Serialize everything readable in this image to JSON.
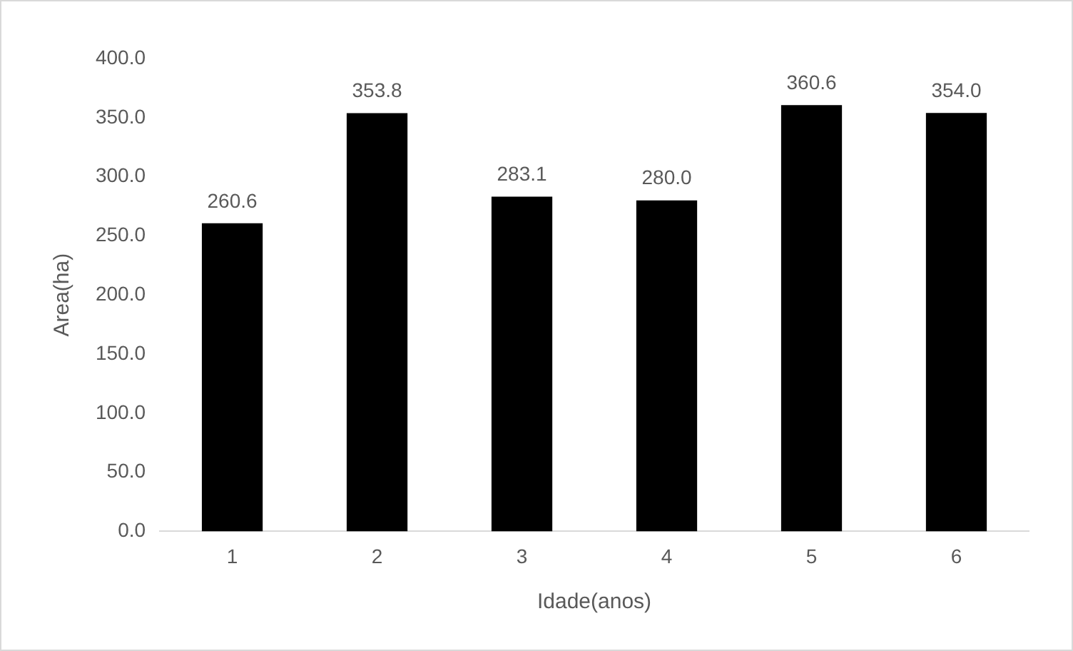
{
  "chart_data": {
    "type": "bar",
    "xlabel": "Idade(anos)",
    "ylabel": "Area(ha)",
    "categories": [
      "1",
      "2",
      "3",
      "4",
      "5",
      "6"
    ],
    "values": [
      260.6,
      353.8,
      283.1,
      280.0,
      360.6,
      354.0
    ],
    "color": "#000000",
    "ylim": [
      0,
      400
    ],
    "yticks": [
      {
        "value": 0,
        "label": "0.0"
      },
      {
        "value": 50,
        "label": "50.0"
      },
      {
        "value": 100,
        "label": "100.0"
      },
      {
        "value": 150,
        "label": "150.0"
      },
      {
        "value": 200,
        "label": "200.0"
      },
      {
        "value": 250,
        "label": "250.0"
      },
      {
        "value": 300,
        "label": "300.0"
      },
      {
        "value": 350,
        "label": "350.0"
      },
      {
        "value": 400,
        "label": "400.0"
      }
    ],
    "value_labels": [
      "260.6",
      "353.8",
      "283.1",
      "280.0",
      "360.6",
      "354.0"
    ],
    "grid": false,
    "legend": false
  }
}
